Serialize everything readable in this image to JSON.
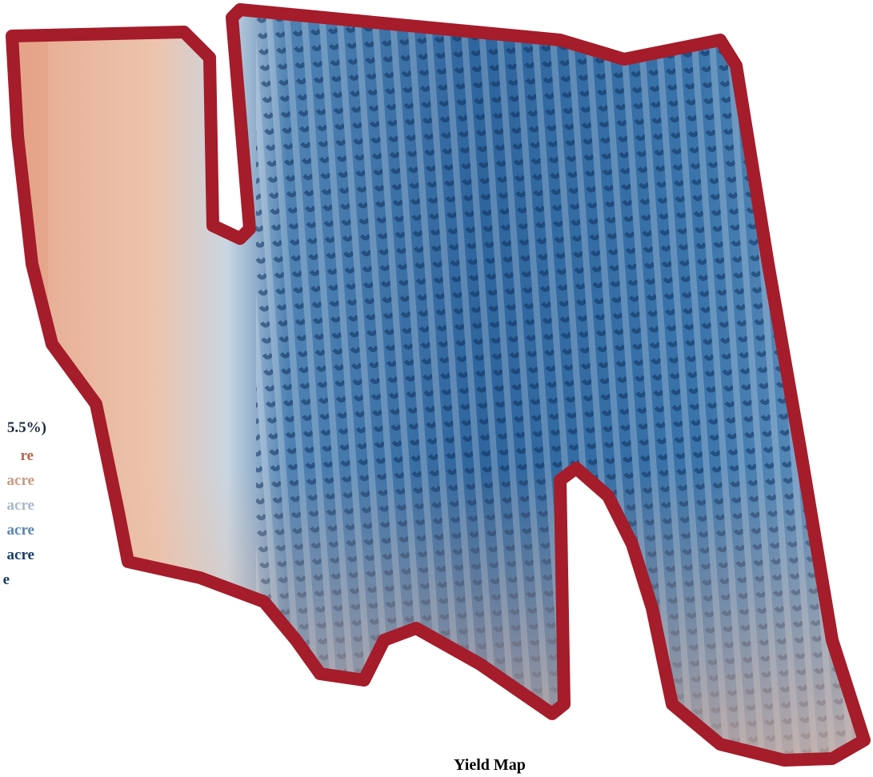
{
  "title": "Yield Map",
  "legend": {
    "items": [
      "5.5%)",
      "re",
      "acre",
      "acre",
      "acre",
      "acre",
      "e"
    ]
  }
}
